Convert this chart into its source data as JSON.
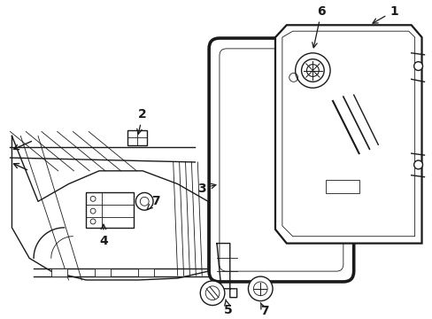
{
  "bg_color": "#ffffff",
  "line_color": "#1a1a1a",
  "fig_width": 4.89,
  "fig_height": 3.6,
  "dpi": 100,
  "lw_main": 1.0,
  "lw_thick": 1.6,
  "lw_thin": 0.6,
  "label_fontsize": 10
}
